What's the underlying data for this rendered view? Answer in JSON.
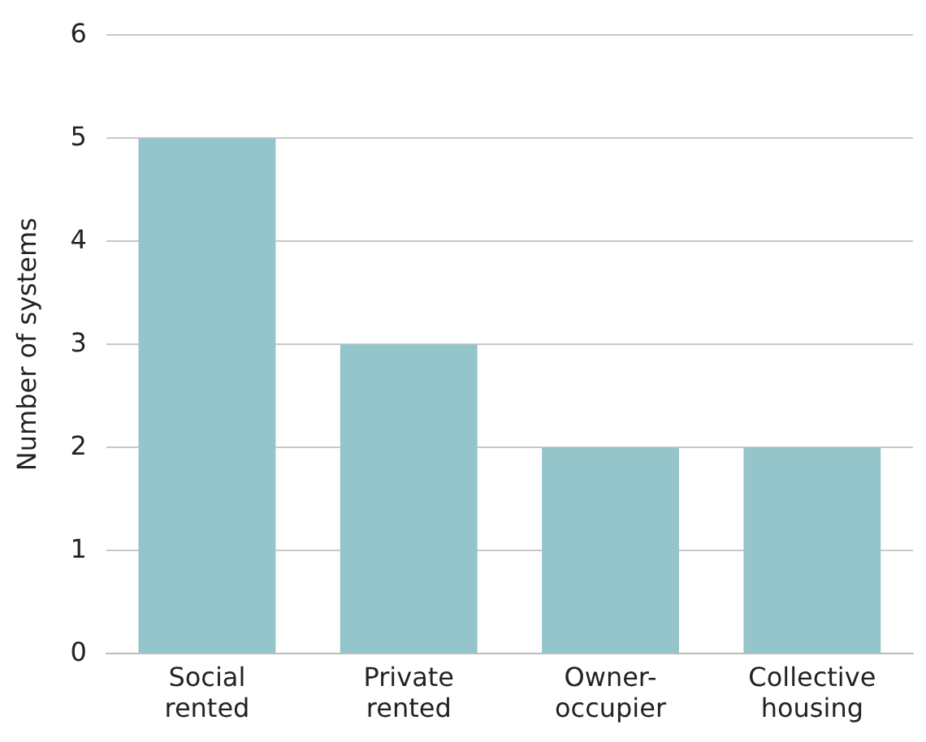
{
  "chart_data": {
    "type": "bar",
    "ylabel": "Number of systems",
    "categories": [
      "Social rented",
      "Private rented",
      "Owner-occupier",
      "Collective housing"
    ],
    "values": [
      5,
      3,
      2,
      2
    ],
    "color": "#94c5ca",
    "ylim": [
      0,
      6
    ],
    "yticks": [
      0,
      1,
      2,
      3,
      4,
      5,
      6
    ],
    "grid": "y",
    "legend": false
  }
}
